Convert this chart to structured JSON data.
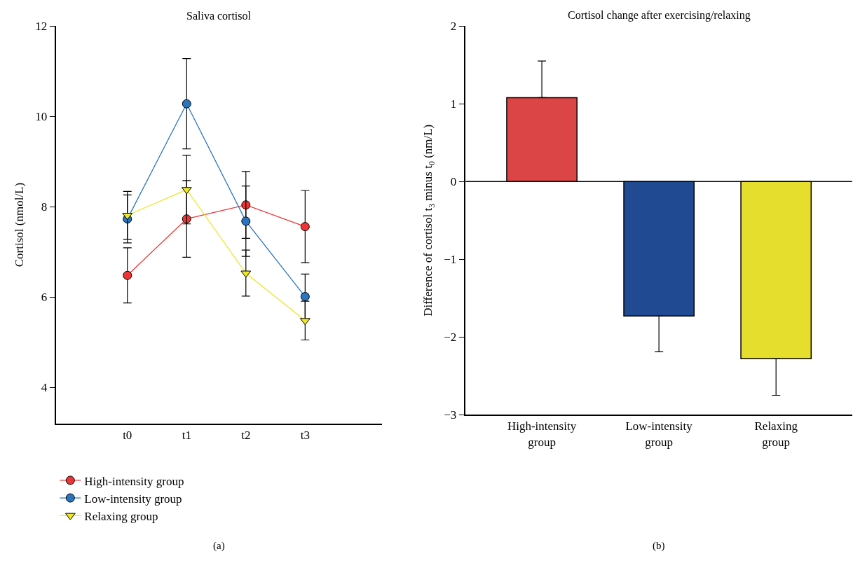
{
  "chart_data": [
    {
      "type": "line",
      "title": "Saliva cortisol",
      "ylabel": "Cortisol (nmol/L)",
      "categories": [
        "t0",
        "t1",
        "t2",
        "t3"
      ],
      "series": [
        {
          "name": "High-intensity group",
          "color": "#ee3535",
          "marker": "circle",
          "values": [
            6.48,
            7.73,
            8.04,
            7.56
          ],
          "errors": [
            0.61,
            0.85,
            0.74,
            0.8
          ]
        },
        {
          "name": "Low-intensity group",
          "color": "#2a74c0",
          "marker": "circle",
          "values": [
            7.73,
            10.28,
            7.68,
            6.01
          ],
          "errors": [
            0.53,
            1.0,
            0.78,
            0.5
          ]
        },
        {
          "name": "Relaxing group",
          "color": "#ece62a",
          "marker": "triangle",
          "values": [
            7.81,
            8.38,
            6.53,
            5.48
          ],
          "errors": [
            0.53,
            0.76,
            0.51,
            0.43
          ]
        }
      ],
      "ylim": [
        3.2,
        12
      ],
      "yticks": [
        4,
        6,
        8,
        10,
        12
      ],
      "legend": "bottom left",
      "line_style": "solid",
      "annotations": [
        "(a)"
      ]
    },
    {
      "type": "bar",
      "title": "Cortisol change after exercising/relaxing",
      "ylabel": "Difference of cortisol t$_{3}$ minus t$_{0}$ (nm/L)",
      "categories": [
        "High-intensity group",
        "Low-intensity group",
        "Relaxing group"
      ],
      "values": [
        1.08,
        -1.73,
        -2.28
      ],
      "colors": [
        "#dc4545",
        "#204a92",
        "#e6de2c"
      ],
      "errors": [
        [
          1.08,
          1.55
        ],
        [
          -2.19,
          -1.73
        ],
        [
          -2.75,
          -2.28
        ]
      ],
      "ylim": [
        -3,
        2
      ],
      "yticks": [
        -3,
        -2,
        -1,
        0,
        1,
        2
      ],
      "legend": false,
      "ref_lines": [
        {
          "axis": "y",
          "value": 0,
          "color": "#000000",
          "line_style": "solid"
        }
      ],
      "annotations": [
        "(b)"
      ]
    }
  ]
}
